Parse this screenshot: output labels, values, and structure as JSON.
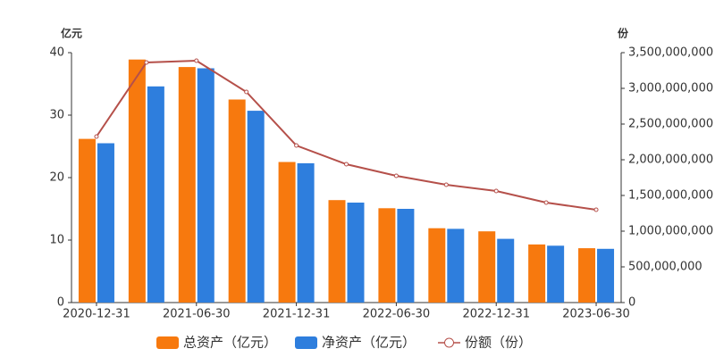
{
  "chart_data": {
    "type": "bar-line",
    "y_label": "亿元",
    "y2_label": "份",
    "categories": [
      "2020-12-31",
      null,
      "2021-06-30",
      null,
      "2021-12-31",
      null,
      "2022-06-30",
      null,
      "2022-12-31",
      null,
      "2023-06-30"
    ],
    "series": [
      {
        "name": "总资产（亿元）",
        "type": "bar",
        "color": "#f7790e",
        "values": [
          26.2,
          38.9,
          37.7,
          32.5,
          22.5,
          16.4,
          15.1,
          11.9,
          11.4,
          9.3,
          8.7
        ]
      },
      {
        "name": "净资产（亿元）",
        "type": "bar",
        "color": "#2e7edd",
        "values": [
          25.5,
          34.6,
          37.5,
          30.7,
          22.3,
          16.0,
          15.0,
          11.8,
          10.2,
          9.1,
          8.6
        ]
      },
      {
        "name": "份额（份）",
        "type": "line",
        "axis": "y2",
        "color": "#b5504a",
        "values": [
          2325000000,
          3362500000,
          3387500000,
          2950000000,
          2200000000,
          1937500000,
          1775000000,
          1650000000,
          1562500000,
          1400000000,
          1300000000
        ]
      }
    ],
    "ylim": [
      0,
      40
    ],
    "yticks": [
      0,
      10,
      20,
      30,
      40
    ],
    "y2lim": [
      0,
      3500000000
    ],
    "y2ticks": [
      0,
      {
        "value": 500000000,
        "label": "500,000,000"
      },
      {
        "value": 1000000000,
        "label": "1,000,000,000"
      },
      {
        "value": 1500000000,
        "label": "1,500,000,000"
      },
      {
        "value": 2000000000,
        "label": "2,000,000,000"
      },
      {
        "value": 2500000000,
        "label": "2,500,000,000"
      },
      {
        "value": 3000000000,
        "label": "3,000,000,000"
      },
      {
        "value": 3500000000,
        "label": "3,500,000,000"
      }
    ]
  }
}
